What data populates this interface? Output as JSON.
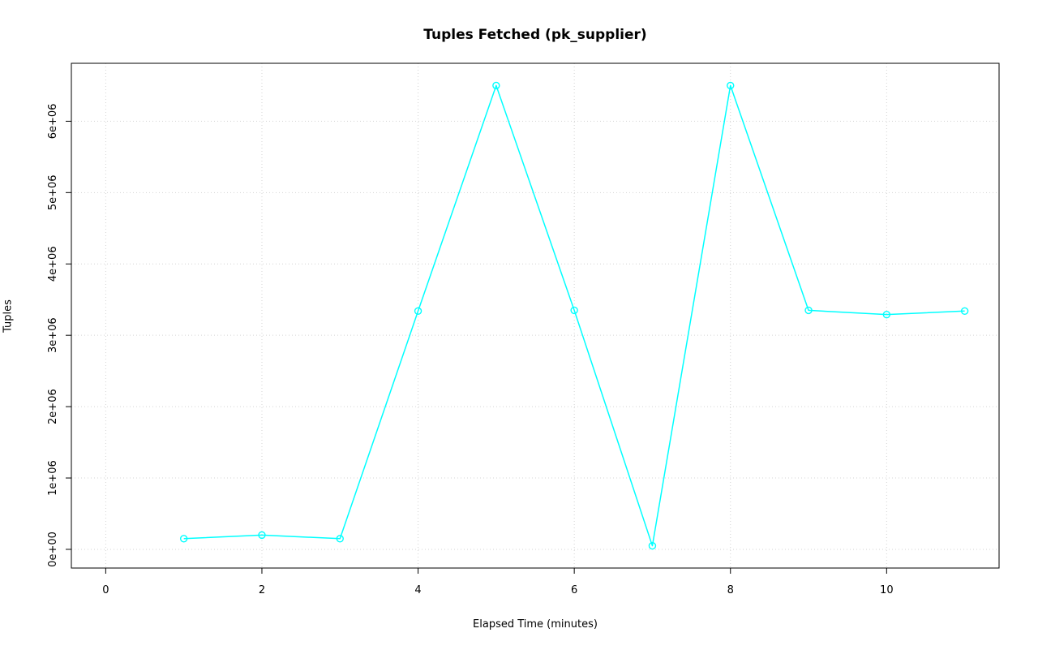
{
  "chart_data": {
    "type": "line",
    "title": "Tuples Fetched (pk_supplier)",
    "xlabel": "Elapsed Time (minutes)",
    "ylabel": "Tuples",
    "x": [
      1,
      2,
      3,
      4,
      5,
      6,
      7,
      8,
      9,
      10,
      11
    ],
    "y": [
      150000,
      200000,
      150000,
      3340000,
      6500000,
      3350000,
      50000,
      6500000,
      3350000,
      3290000,
      3340000
    ],
    "xlim": [
      -0.44,
      11.44
    ],
    "ylim": [
      -262000,
      6812000
    ],
    "x_ticks": [
      0,
      2,
      4,
      6,
      8,
      10
    ],
    "x_tick_labels": [
      "0",
      "2",
      "4",
      "6",
      "8",
      "10"
    ],
    "y_ticks": [
      0,
      1000000,
      2000000,
      3000000,
      4000000,
      5000000,
      6000000
    ],
    "y_tick_labels": [
      "0e+00",
      "1e+06",
      "2e+06",
      "3e+06",
      "4e+06",
      "5e+06",
      "6e+06"
    ],
    "grid": true,
    "legend": "none",
    "marker": "open-circle",
    "colors": {
      "line": "#00FFFF",
      "grid": "#D3D3D3",
      "axis": "#000000",
      "text": "#000000",
      "background": "#FFFFFF"
    }
  }
}
